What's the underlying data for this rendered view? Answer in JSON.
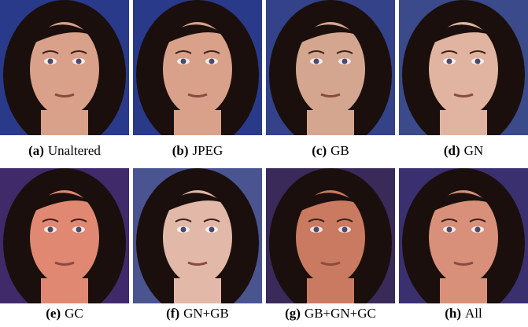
{
  "panels": [
    {
      "tag": "(a)",
      "caption": "Unaltered"
    },
    {
      "tag": "(b)",
      "caption": "JPEG"
    },
    {
      "tag": "(c)",
      "caption": "GB"
    },
    {
      "tag": "(d)",
      "caption": "GN"
    },
    {
      "tag": "(e)",
      "caption": "GC"
    },
    {
      "tag": "(f)",
      "caption": "GN+GB"
    },
    {
      "tag": "(g)",
      "caption": "GB+GN+GC"
    },
    {
      "tag": "(h)",
      "caption": "All"
    }
  ]
}
